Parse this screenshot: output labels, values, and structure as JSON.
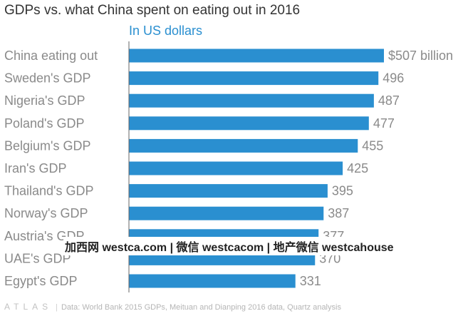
{
  "chart_data": {
    "type": "bar",
    "orientation": "horizontal",
    "title": "GDPs vs. what China spent on eating out in 2016",
    "subtitle": "In US dollars",
    "categories": [
      "China eating out",
      "Sweden's GDP",
      "Nigeria's GDP",
      "Poland's GDP",
      "Belgium's GDP",
      "Iran's GDP",
      "Thailand's GDP",
      "Norway's GDP",
      "Austria's GDP",
      "UAE's GDP",
      "Egypt's GDP"
    ],
    "values": [
      507,
      496,
      487,
      477,
      455,
      425,
      395,
      387,
      377,
      370,
      331
    ],
    "value_labels": [
      "$507 billion",
      "496",
      "487",
      "477",
      "455",
      "425",
      "395",
      "387",
      "377",
      "370",
      "331"
    ],
    "xlim": [
      0,
      507
    ],
    "bar_color": "#2a8fd0",
    "label_color": "#8a8a8a",
    "grid": false
  },
  "watermark": "加西网 westca.com | 微信 westcacom | 地产微信 westcahouse",
  "footer": {
    "logo": "ATLAS",
    "separator": "|",
    "source": "Data: World Bank 2015 GDPs, Meituan and Dianping 2016 data, Quartz analysis"
  }
}
